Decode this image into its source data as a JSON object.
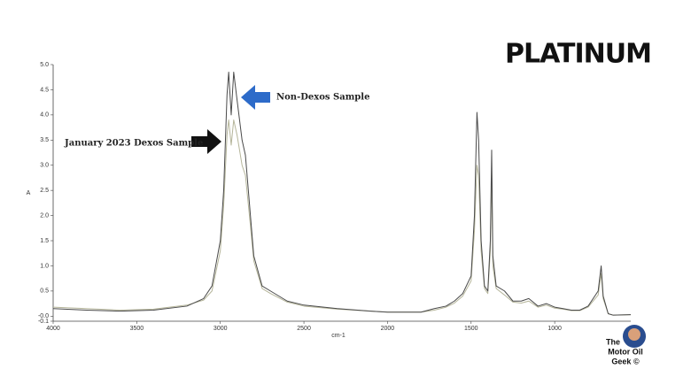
{
  "chart_data": {
    "type": "line",
    "title": "PLATINUM",
    "xlabel": "cm-1",
    "ylabel": "A",
    "x": [
      4000,
      3800,
      3600,
      3400,
      3200,
      3100,
      3050,
      3000,
      2980,
      2960,
      2950,
      2935,
      2920,
      2900,
      2870,
      2850,
      2820,
      2800,
      2750,
      2700,
      2600,
      2500,
      2300,
      2100,
      2000,
      1800,
      1720,
      1650,
      1600,
      1550,
      1500,
      1480,
      1465,
      1455,
      1440,
      1420,
      1400,
      1385,
      1377,
      1370,
      1350,
      1300,
      1250,
      1200,
      1155,
      1100,
      1050,
      1000,
      950,
      900,
      850,
      800,
      740,
      722,
      710,
      680,
      650,
      545
    ],
    "series": [
      {
        "name": "Non-Dexos Sample",
        "color": "#4a4a4a",
        "values": [
          0.15,
          0.12,
          0.1,
          0.12,
          0.2,
          0.35,
          0.6,
          1.5,
          2.5,
          4.4,
          4.85,
          4.0,
          4.85,
          4.3,
          3.5,
          3.2,
          2.0,
          1.2,
          0.6,
          0.5,
          0.3,
          0.22,
          0.15,
          0.1,
          0.08,
          0.08,
          0.15,
          0.2,
          0.3,
          0.45,
          0.8,
          2.0,
          4.05,
          3.5,
          1.5,
          0.6,
          0.5,
          1.5,
          3.3,
          1.2,
          0.6,
          0.5,
          0.3,
          0.3,
          0.35,
          0.2,
          0.25,
          0.18,
          0.15,
          0.12,
          0.12,
          0.2,
          0.5,
          1.0,
          0.4,
          0.05,
          0.02,
          0.03
        ]
      },
      {
        "name": "January 2023 Dexos Sample",
        "color": "#b5b59a",
        "values": [
          0.18,
          0.15,
          0.12,
          0.14,
          0.22,
          0.32,
          0.5,
          1.3,
          2.2,
          3.6,
          3.9,
          3.4,
          3.9,
          3.6,
          3.0,
          2.8,
          1.8,
          1.1,
          0.55,
          0.45,
          0.28,
          0.2,
          0.14,
          0.1,
          0.08,
          0.08,
          0.12,
          0.18,
          0.26,
          0.4,
          0.7,
          1.7,
          3.0,
          2.8,
          1.3,
          0.55,
          0.45,
          1.3,
          2.9,
          1.0,
          0.55,
          0.42,
          0.28,
          0.26,
          0.3,
          0.18,
          0.22,
          0.16,
          0.14,
          0.11,
          0.11,
          0.18,
          0.42,
          0.85,
          0.35,
          0.05,
          0.02,
          0.03
        ]
      }
    ],
    "xlim": [
      4000,
      545
    ],
    "ylim": [
      -0.1,
      5.0
    ],
    "xticks": [
      4000,
      3500,
      3000,
      2500,
      2000,
      1500,
      1000
    ],
    "yticks": [
      {
        "value": 5,
        "label": "5.0"
      },
      {
        "value": 4.5,
        "label": "4.5"
      },
      {
        "value": 4,
        "label": "4.0"
      },
      {
        "value": 3.5,
        "label": "3.5"
      },
      {
        "value": 3,
        "label": "3.0"
      },
      {
        "value": 2.5,
        "label": "2.5"
      },
      {
        "value": 2,
        "label": "2.0"
      },
      {
        "value": 1.5,
        "label": "1.5"
      },
      {
        "value": 1,
        "label": "1.0"
      },
      {
        "value": 0.5,
        "label": "0.5"
      },
      {
        "value": 0,
        "label": "-0.0"
      },
      {
        "value": -0.1,
        "label": "-0.1"
      }
    ],
    "grid": false
  },
  "watermark": [
    "The",
    "Motor Oil",
    "Geek ©"
  ]
}
